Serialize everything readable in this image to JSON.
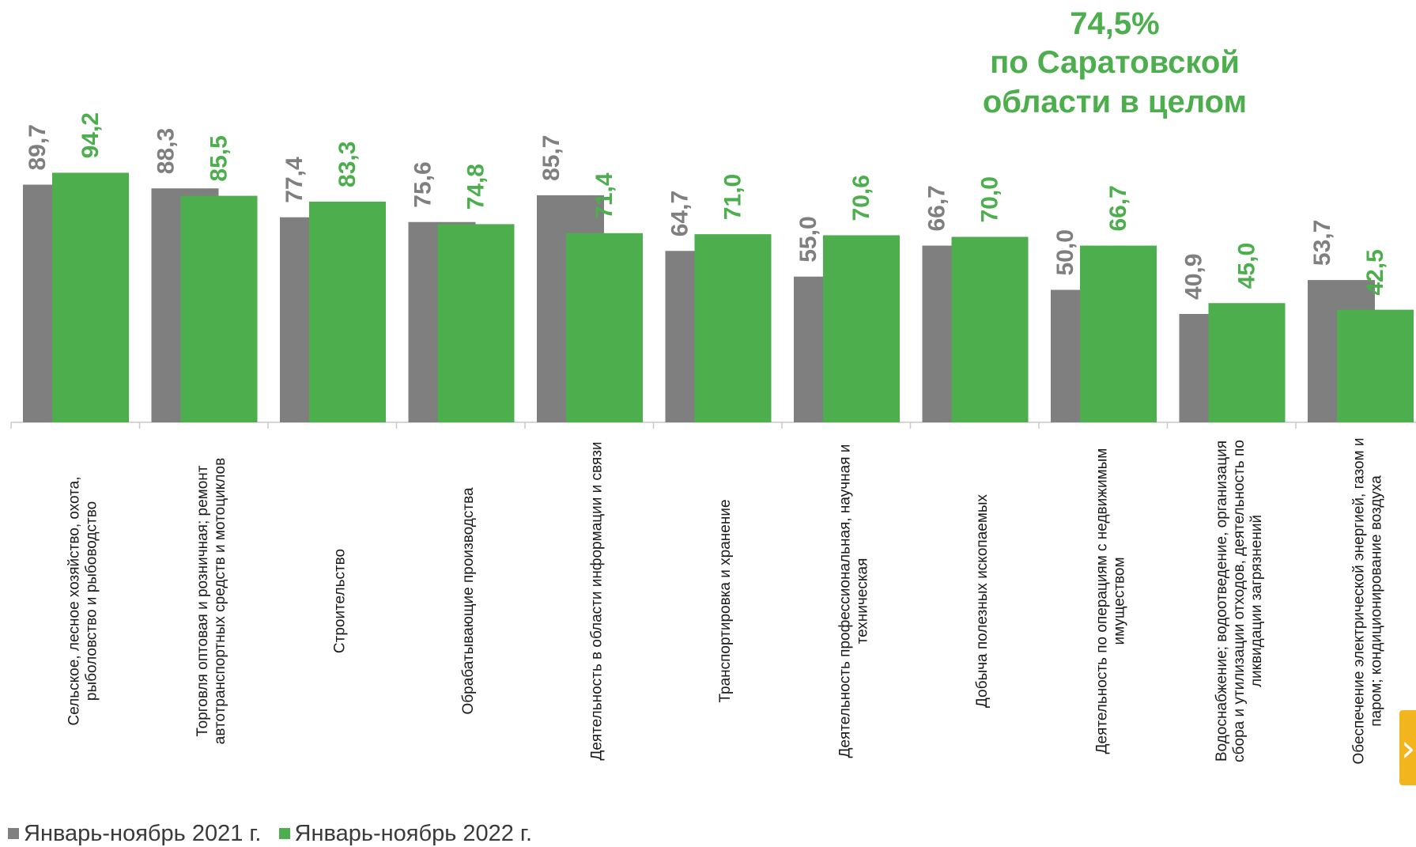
{
  "callout": {
    "value": "74,5%",
    "line1": "по Саратовской",
    "line2": "области в целом"
  },
  "legend": {
    "items": [
      {
        "label": "Январь-ноябрь  2021 г.",
        "color": "#7f7f7f"
      },
      {
        "label": "Январь-ноябрь  2022 г.",
        "color": "#4cae4c"
      }
    ]
  },
  "nav_button": {
    "icon": "chevron-right-icon",
    "glyph": "›"
  },
  "chart_data": {
    "type": "bar",
    "ylim": [
      0,
      120
    ],
    "grid": false,
    "colors": {
      "series_2021": "#7f7f7f",
      "series_2022": "#4cae4c",
      "label_2021": "#7f7f7f",
      "label_2022": "#4cae4c"
    },
    "categories": [
      [
        "Сельское, лесное хозяйство, охота,",
        "рыболовство и  рыбоводство"
      ],
      [
        "Торговля оптовая и розничная; ремонт",
        "автотранспортных средств и мотоциклов"
      ],
      [
        "Строительство"
      ],
      [
        "Обрабатывающие производства"
      ],
      [
        "Деятельность в области информации и связи"
      ],
      [
        "Транспортировка и хранение"
      ],
      [
        "Деятельность профессиональная, научная и",
        "техническая"
      ],
      [
        "Добыча полезных ископаемых"
      ],
      [
        "Деятельность по операциям с недвижимым",
        "имуществом"
      ],
      [
        "Водоснабжение; водоотведение, организация",
        "сбора и утилизации отходов, деятельность по",
        "ликвидации загрязнений"
      ],
      [
        "Обеспечение электрической энергией, газом и",
        "паром; кондиционирование воздуха"
      ]
    ],
    "series": [
      {
        "name": "Январь-ноябрь  2021 г.",
        "values": [
          89.7,
          88.3,
          77.4,
          75.6,
          85.7,
          64.7,
          55.0,
          66.7,
          50.0,
          40.9,
          53.7
        ],
        "labels": [
          "89,7",
          "88,3",
          "77,4",
          "75,6",
          "85,7",
          "64,7",
          "55,0",
          "66,7",
          "50,0",
          "40,9",
          "53,7"
        ]
      },
      {
        "name": "Январь-ноябрь  2022 г.",
        "values": [
          94.2,
          85.5,
          83.3,
          74.8,
          71.4,
          71.0,
          70.6,
          70.0,
          66.7,
          45.0,
          42.5
        ],
        "labels": [
          "94,2",
          "85,5",
          "83,3",
          "74,8",
          "71,4",
          "71,0",
          "70,6",
          "70,0",
          "66,7",
          "45,0",
          "42,5"
        ]
      }
    ]
  }
}
